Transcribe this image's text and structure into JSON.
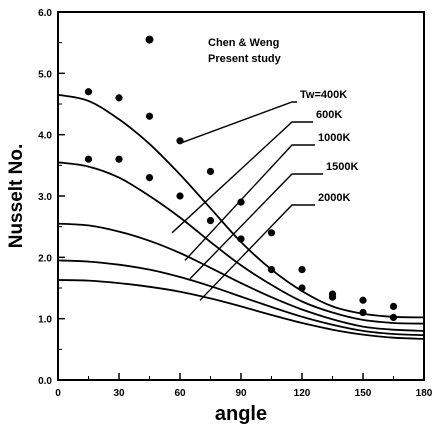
{
  "chart_data": {
    "type": "line",
    "title": "",
    "xlabel": "angle",
    "ylabel": "Nusselt No.",
    "xlim": [
      0,
      180
    ],
    "ylim": [
      0.0,
      6.0
    ],
    "x_ticks": [
      "0",
      "30",
      "60",
      "90",
      "120",
      "150",
      "180"
    ],
    "y_ticks": [
      "0.0",
      "1.0",
      "2.0",
      "3.0",
      "4.0",
      "5.0",
      "6.0"
    ],
    "grid": false,
    "legend": {
      "position": "top-center",
      "entries": [
        {
          "label": "Chen & Weng",
          "marker": "circle"
        },
        {
          "label": "Present study",
          "marker": "line"
        }
      ]
    },
    "series": [
      {
        "name": "Tw=400K",
        "x": [
          0,
          15,
          30,
          45,
          60,
          75,
          90,
          105,
          120,
          135,
          150,
          165,
          180
        ],
        "y": [
          4.65,
          4.55,
          4.25,
          3.85,
          3.35,
          2.8,
          2.25,
          1.8,
          1.45,
          1.2,
          1.08,
          1.03,
          1.02
        ]
      },
      {
        "name": "600K",
        "x": [
          0,
          15,
          30,
          45,
          60,
          75,
          90,
          105,
          120,
          135,
          150,
          165,
          180
        ],
        "y": [
          3.55,
          3.48,
          3.3,
          3.0,
          2.65,
          2.25,
          1.87,
          1.55,
          1.28,
          1.1,
          0.98,
          0.93,
          0.92
        ]
      },
      {
        "name": "1000K",
        "x": [
          0,
          15,
          30,
          45,
          60,
          75,
          90,
          105,
          120,
          135,
          150,
          165,
          180
        ],
        "y": [
          2.55,
          2.52,
          2.42,
          2.27,
          2.07,
          1.83,
          1.58,
          1.35,
          1.15,
          0.99,
          0.87,
          0.82,
          0.8
        ]
      },
      {
        "name": "1500K",
        "x": [
          0,
          15,
          30,
          45,
          60,
          75,
          90,
          105,
          120,
          135,
          150,
          165,
          180
        ],
        "y": [
          1.95,
          1.93,
          1.88,
          1.8,
          1.68,
          1.53,
          1.36,
          1.19,
          1.03,
          0.9,
          0.8,
          0.75,
          0.73
        ]
      },
      {
        "name": "2000K",
        "x": [
          0,
          15,
          30,
          45,
          60,
          75,
          90,
          105,
          120,
          135,
          150,
          165,
          180
        ],
        "y": [
          1.63,
          1.62,
          1.58,
          1.52,
          1.44,
          1.33,
          1.2,
          1.06,
          0.93,
          0.82,
          0.74,
          0.69,
          0.67
        ]
      }
    ],
    "scatter": [
      {
        "name": "Chen & Weng 1",
        "x": [
          15,
          30,
          45,
          60,
          75,
          90,
          105,
          120,
          135,
          150,
          165
        ],
        "y": [
          4.7,
          4.6,
          4.3,
          3.9,
          3.4,
          2.9,
          2.4,
          1.8,
          1.4,
          1.3,
          1.2
        ]
      },
      {
        "name": "Chen & Weng 2",
        "x": [
          15,
          30,
          45,
          60,
          75,
          90,
          105,
          120,
          135,
          150,
          165
        ],
        "y": [
          3.6,
          3.6,
          3.3,
          3.0,
          2.6,
          2.3,
          1.8,
          1.5,
          1.35,
          1.1,
          1.02
        ]
      }
    ]
  }
}
